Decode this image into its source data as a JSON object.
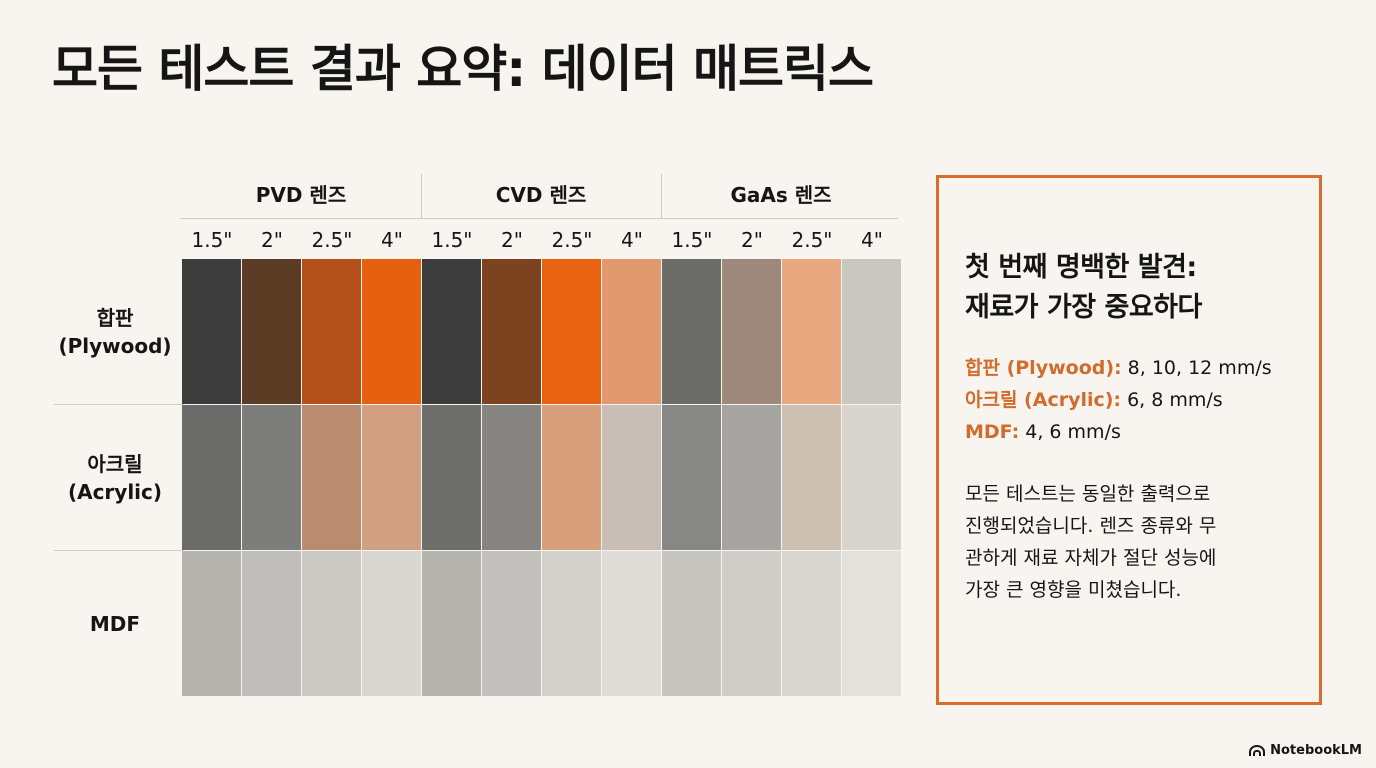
{
  "title": "모든 테스트 결과 요약: 데이터 매트릭스",
  "matrix": {
    "lens_groups": [
      {
        "label": "PVD 렌즈",
        "sizes": [
          "1.5\"",
          "2\"",
          "2.5\"",
          "4\""
        ]
      },
      {
        "label": "CVD 렌즈",
        "sizes": [
          "1.5\"",
          "2\"",
          "2.5\"",
          "4\""
        ]
      },
      {
        "label": "GaAs 렌즈",
        "sizes": [
          "1.5\"",
          "2\"",
          "2.5\"",
          "4\""
        ]
      }
    ],
    "materials": [
      {
        "label": "합판\n(Plywood)",
        "cells": [
          "#3c3c3c",
          "#5d3c26",
          "#b3501a",
          "#e5600f",
          "#3c3c3c",
          "#7b4320",
          "#e8620f",
          "#e09a6d",
          "#6c6c69",
          "#9d8a7c",
          "#e9a880",
          "#cac6c0"
        ]
      },
      {
        "label": "아크릴\n(Acrylic)",
        "cells": [
          "#6b6b69",
          "#7d7d7b",
          "#b98c6f",
          "#d0a081",
          "#6e6e6b",
          "#858481",
          "#d89f7d",
          "#c9beb5",
          "#878785",
          "#a5a4a1",
          "#cdbfb2",
          "#d8d5cf"
        ]
      },
      {
        "label": "MDF",
        "cells": [
          "#b5b3ae",
          "#c0beba",
          "#cbc9c4",
          "#d9d7d2",
          "#b5b3ae",
          "#c2c0bc",
          "#d2d0cb",
          "#dedcd7",
          "#c6c4bf",
          "#cfcdc8",
          "#d8d6d1",
          "#e3e1dc"
        ]
      }
    ]
  },
  "panel": {
    "heading": "첫 번째 명백한 발견:\n재료가 가장 중요하다",
    "findings": [
      {
        "label": "합판 (Plywood):",
        "value": " 8, 10, 12 mm/s"
      },
      {
        "label": "아크릴 (Acrylic):",
        "value": " 6, 8 mm/s"
      },
      {
        "label": "MDF:",
        "value": " 4, 6 mm/s"
      }
    ],
    "body": "모든 테스트는 동일한 출력으로\n진행되었습니다. 렌즈 종류와 무\n관하게 재료 자체가 절단 성능에\n가장 큰 영향을 미쳤습니다."
  },
  "brand": "NotebookLM",
  "colors": {
    "accent": "#d86d2c",
    "background": "#f8f5f0"
  },
  "icons": {
    "brand": "notebooklm-logo-icon"
  }
}
